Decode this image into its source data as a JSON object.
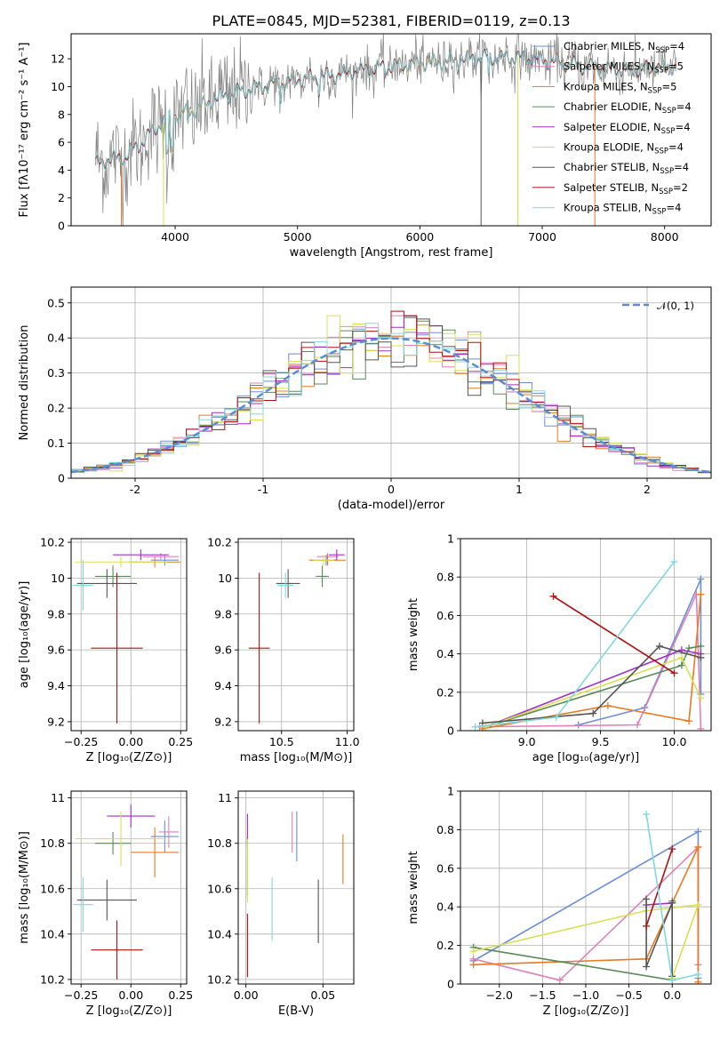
{
  "title": "PLATE=0845, MJD=52381, FIBERID=0119, z=0.13",
  "colors": {
    "chabrier_miles": "#6a8fd8",
    "salpeter_miles": "#e080b8",
    "kroupa_miles": "#e87a20",
    "chabrier_elodie": "#5a8a5a",
    "salpeter_elodie": "#a030c8",
    "kroupa_elodie": "#d8e050",
    "chabrier_stelib": "#555555",
    "salpeter_stelib": "#b01010",
    "kroupa_stelib": "#80d8e0"
  },
  "chart_data": [
    {
      "id": "spectrum",
      "type": "line",
      "xlabel": "wavelength [Angstrom, rest frame]",
      "ylabel": "Flux [fλ10⁻¹⁷ erg cm⁻² s⁻¹ A⁻¹]",
      "xlim": [
        3150,
        8380
      ],
      "ylim": [
        0,
        13.8
      ],
      "xticks": [
        4000,
        5000,
        6000,
        7000,
        8000
      ],
      "yticks": [
        0,
        2,
        4,
        6,
        8,
        10,
        12
      ],
      "x_range": [
        3350,
        8100
      ],
      "continuum": [
        [
          3350,
          4.5
        ],
        [
          3600,
          5.0
        ],
        [
          3750,
          6.2
        ],
        [
          3900,
          7.5
        ],
        [
          4000,
          8.0
        ],
        [
          4150,
          8.3
        ],
        [
          4300,
          9.0
        ],
        [
          4500,
          9.6
        ],
        [
          4700,
          10.0
        ],
        [
          5000,
          10.5
        ],
        [
          5300,
          10.8
        ],
        [
          5600,
          11.3
        ],
        [
          5900,
          11.6
        ],
        [
          6200,
          11.8
        ],
        [
          6500,
          12.1
        ],
        [
          6800,
          12.1
        ],
        [
          7100,
          11.8
        ],
        [
          7400,
          11.4
        ],
        [
          7700,
          11.2
        ],
        [
          8000,
          11.4
        ],
        [
          8100,
          11.5
        ]
      ],
      "legend": [
        {
          "label": "Chabrier MILES, N",
          "sub": "SSP",
          "suffix": "=4",
          "color_key": "chabrier_miles"
        },
        {
          "label": "Salpeter MILES, N",
          "sub": "SSP",
          "suffix": "=5",
          "color_key": "salpeter_miles"
        },
        {
          "label": "Kroupa MILES, N",
          "sub": "SSP",
          "suffix": "=5",
          "color_key": "kroupa_miles"
        },
        {
          "label": "Chabrier ELODIE, N",
          "sub": "SSP",
          "suffix": "=4",
          "color_key": "chabrier_elodie"
        },
        {
          "label": "Salpeter ELODIE, N",
          "sub": "SSP",
          "suffix": "=4",
          "color_key": "salpeter_elodie"
        },
        {
          "label": "Kroupa ELODIE, N",
          "sub": "SSP",
          "suffix": "=4",
          "color_key": "kroupa_elodie"
        },
        {
          "label": "Chabrier STELIB, N",
          "sub": "SSP",
          "suffix": "=4",
          "color_key": "chabrier_stelib"
        },
        {
          "label": "Salpeter STELIB, N",
          "sub": "SSP",
          "suffix": "=2",
          "color_key": "salpeter_stelib"
        },
        {
          "label": "Kroupa STELIB, N",
          "sub": "SSP",
          "suffix": "=4",
          "color_key": "kroupa_stelib"
        }
      ]
    },
    {
      "id": "residuals",
      "type": "bar",
      "xlabel": "(data-model)/error",
      "ylabel": "Normed distribution",
      "xlim": [
        -2.5,
        2.5
      ],
      "ylim": [
        0,
        0.545
      ],
      "xticks": [
        -2,
        -1,
        0,
        1,
        2
      ],
      "yticks": [
        0.0,
        0.1,
        0.2,
        0.3,
        0.4,
        0.5
      ],
      "bin_width": 0.1,
      "legend": "𝒩(0, 1)",
      "gaussian_mean": 0,
      "gaussian_sigma": 1
    },
    {
      "id": "z_age",
      "type": "scatter",
      "xlabel": "Z [log₁₀(Z/Z⊙)]",
      "ylabel": "age  [log₁₀(age/yr)]",
      "xlim": [
        -0.3,
        0.28
      ],
      "ylim": [
        9.15,
        10.22
      ],
      "xticks": [
        -0.25,
        0.0,
        0.25
      ],
      "xticklabels": [
        "−0.25",
        "0.00",
        "0.25"
      ],
      "yticks": [
        9.2,
        9.4,
        9.6,
        9.8,
        10.0,
        10.2
      ],
      "points": [
        {
          "k": "chabrier_miles",
          "x": 0.17,
          "xe": 0.07,
          "y": 10.1,
          "ye": 0.03
        },
        {
          "k": "salpeter_miles",
          "x": 0.15,
          "xe": 0.09,
          "y": 10.12,
          "ye": 0.02
        },
        {
          "k": "kroupa_miles",
          "x": 0.12,
          "xe": 0.13,
          "y": 10.09,
          "ye": 0.03
        },
        {
          "k": "chabrier_elodie",
          "x": -0.09,
          "xe": 0.09,
          "y": 10.01,
          "ye": 0.06
        },
        {
          "k": "salpeter_elodie",
          "x": 0.05,
          "xe": 0.14,
          "y": 10.13,
          "ye": 0.03
        },
        {
          "k": "kroupa_elodie",
          "x": -0.05,
          "xe": 0.23,
          "y": 10.09,
          "ye": 0.03
        },
        {
          "k": "chabrier_stelib",
          "x": -0.12,
          "xe": 0.15,
          "y": 9.97,
          "ye": 0.08
        },
        {
          "k": "salpeter_stelib",
          "x": -0.07,
          "xe": 0.13,
          "y": 9.61,
          "ye": 0.42
        },
        {
          "k": "kroupa_stelib",
          "x": -0.24,
          "xe": 0.05,
          "y": 9.96,
          "ye": 0.14
        }
      ]
    },
    {
      "id": "mass_age",
      "type": "scatter",
      "xlabel": "mass [log₁₀(M/M⊙)]",
      "ylabel": "",
      "xlim": [
        10.17,
        11.05
      ],
      "ylim": [
        9.15,
        10.22
      ],
      "xticks": [
        10.5,
        11.0
      ],
      "xticklabels": [
        "10.5",
        "11.0"
      ],
      "yticks": [
        9.2,
        9.4,
        9.6,
        9.8,
        10.0,
        10.2
      ],
      "points": [
        {
          "k": "chabrier_miles",
          "x": 10.84,
          "xe": 0.08,
          "y": 10.1,
          "ye": 0.03
        },
        {
          "k": "salpeter_miles",
          "x": 10.85,
          "xe": 0.08,
          "y": 10.12,
          "ye": 0.02
        },
        {
          "k": "kroupa_miles",
          "x": 10.85,
          "xe": 0.14,
          "y": 10.1,
          "ye": 0.03
        },
        {
          "k": "chabrier_elodie",
          "x": 10.81,
          "xe": 0.05,
          "y": 10.01,
          "ye": 0.06
        },
        {
          "k": "salpeter_elodie",
          "x": 10.92,
          "xe": 0.06,
          "y": 10.13,
          "ye": 0.03
        },
        {
          "k": "kroupa_elodie",
          "x": 10.82,
          "xe": 0.08,
          "y": 10.1,
          "ye": 0.03
        },
        {
          "k": "chabrier_stelib",
          "x": 10.55,
          "xe": 0.09,
          "y": 9.97,
          "ye": 0.08
        },
        {
          "k": "salpeter_stelib",
          "x": 10.33,
          "xe": 0.08,
          "y": 9.61,
          "ye": 0.42
        },
        {
          "k": "kroupa_stelib",
          "x": 10.53,
          "xe": 0.06,
          "y": 9.96,
          "ye": 0.07
        }
      ]
    },
    {
      "id": "age_weight",
      "type": "line",
      "xlabel": "age  [log₁₀(age/yr)]",
      "ylabel": "mass weight",
      "xlim": [
        8.55,
        10.25
      ],
      "ylim": [
        0,
        1.0
      ],
      "xticks": [
        9.0,
        9.5,
        10.0
      ],
      "xticklabels": [
        "9.0",
        "9.5",
        "10.0"
      ],
      "yticks": [
        0.0,
        0.2,
        0.4,
        0.6,
        0.8,
        1.0
      ],
      "series": [
        {
          "k": "chabrier_miles",
          "points": [
            [
              9.35,
              0.03
            ],
            [
              9.8,
              0.12
            ],
            [
              10.18,
              0.79
            ],
            [
              10.18,
              0.19
            ]
          ]
        },
        {
          "k": "salpeter_miles",
          "points": [
            [
              8.68,
              0.02
            ],
            [
              9.75,
              0.03
            ],
            [
              10.15,
              0.71
            ],
            [
              10.18,
              0.01
            ]
          ]
        },
        {
          "k": "kroupa_miles",
          "points": [
            [
              8.7,
              0.01
            ],
            [
              9.55,
              0.13
            ],
            [
              10.1,
              0.05
            ],
            [
              10.18,
              0.71
            ]
          ]
        },
        {
          "k": "chabrier_elodie",
          "points": [
            [
              8.72,
              0.02
            ],
            [
              10.05,
              0.34
            ],
            [
              10.1,
              0.43
            ],
            [
              10.18,
              0.44
            ]
          ]
        },
        {
          "k": "salpeter_elodie",
          "points": [
            [
              8.72,
              0.02
            ],
            [
              10.05,
              0.42
            ],
            [
              10.18,
              0.4
            ]
          ]
        },
        {
          "k": "kroupa_elodie",
          "points": [
            [
              8.72,
              0.02
            ],
            [
              10.05,
              0.38
            ],
            [
              10.18,
              0.17
            ]
          ]
        },
        {
          "k": "chabrier_stelib",
          "points": [
            [
              8.7,
              0.04
            ],
            [
              9.45,
              0.09
            ],
            [
              9.9,
              0.44
            ],
            [
              10.18,
              0.38
            ]
          ]
        },
        {
          "k": "salpeter_stelib",
          "points": [
            [
              9.18,
              0.7
            ],
            [
              10.0,
              0.3
            ]
          ]
        },
        {
          "k": "kroupa_stelib",
          "points": [
            [
              8.65,
              0.02
            ],
            [
              9.2,
              0.07
            ],
            [
              10.0,
              0.88
            ]
          ]
        }
      ]
    },
    {
      "id": "z_mass",
      "type": "scatter",
      "xlabel": "Z [log₁₀(Z/Z⊙)]",
      "ylabel": "mass [log₁₀(M/M⊙)]",
      "xlim": [
        -0.3,
        0.28
      ],
      "ylim": [
        10.18,
        11.03
      ],
      "xticks": [
        -0.25,
        0.0,
        0.25
      ],
      "xticklabels": [
        "−0.25",
        "0.00",
        "0.25"
      ],
      "yticks": [
        10.2,
        10.4,
        10.6,
        10.8,
        11.0
      ],
      "points": [
        {
          "k": "chabrier_miles",
          "x": 0.17,
          "xe": 0.07,
          "y": 10.83,
          "ye": 0.07
        },
        {
          "k": "salpeter_miles",
          "x": 0.19,
          "xe": 0.05,
          "y": 10.85,
          "ye": 0.07
        },
        {
          "k": "kroupa_miles",
          "x": 0.12,
          "xe": 0.12,
          "y": 10.76,
          "ye": 0.11
        },
        {
          "k": "chabrier_elodie",
          "x": -0.09,
          "xe": 0.09,
          "y": 10.8,
          "ye": 0.05
        },
        {
          "k": "salpeter_elodie",
          "x": 0.0,
          "xe": 0.12,
          "y": 10.92,
          "ye": 0.05
        },
        {
          "k": "kroupa_elodie",
          "x": -0.05,
          "xe": 0.23,
          "y": 10.82,
          "ye": 0.12
        },
        {
          "k": "chabrier_stelib",
          "x": -0.12,
          "xe": 0.15,
          "y": 10.55,
          "ye": 0.09
        },
        {
          "k": "salpeter_stelib",
          "x": -0.07,
          "xe": 0.13,
          "y": 10.33,
          "ye": 0.13
        },
        {
          "k": "kroupa_stelib",
          "x": -0.24,
          "xe": 0.05,
          "y": 10.53,
          "ye": 0.12
        }
      ]
    },
    {
      "id": "ebv_mass",
      "type": "scatter",
      "xlabel": "E(B-V)",
      "ylabel": "",
      "xlim": [
        -0.005,
        0.07
      ],
      "ylim": [
        10.18,
        11.03
      ],
      "xticks": [
        0.0,
        0.05
      ],
      "xticklabels": [
        "0.00",
        "0.05"
      ],
      "yticks": [
        10.2,
        10.4,
        10.6,
        10.8,
        11.0
      ],
      "points": [
        {
          "k": "chabrier_miles",
          "x": 0.033,
          "xe": 0.0,
          "y": 10.83,
          "ye": 0.11
        },
        {
          "k": "salpeter_miles",
          "x": 0.03,
          "xe": 0.0,
          "y": 10.85,
          "ye": 0.09
        },
        {
          "k": "kroupa_miles",
          "x": 0.063,
          "xe": 0.0,
          "y": 10.73,
          "ye": 0.11
        },
        {
          "k": "chabrier_elodie",
          "x": 0.001,
          "xe": 0.0,
          "y": 10.7,
          "ye": 0.13
        },
        {
          "k": "salpeter_elodie",
          "x": 0.001,
          "xe": 0.0,
          "y": 10.86,
          "ye": 0.07
        },
        {
          "k": "kroupa_elodie",
          "x": 0.001,
          "xe": 0.0,
          "y": 10.68,
          "ye": 0.14
        },
        {
          "k": "chabrier_stelib",
          "x": 0.047,
          "xe": 0.0,
          "y": 10.5,
          "ye": 0.14
        },
        {
          "k": "salpeter_stelib",
          "x": 0.001,
          "xe": 0.0,
          "y": 10.35,
          "ye": 0.14
        },
        {
          "k": "kroupa_stelib",
          "x": 0.017,
          "xe": 0.0,
          "y": 10.51,
          "ye": 0.14
        }
      ]
    },
    {
      "id": "z_weight",
      "type": "line",
      "xlabel": "Z [log₁₀(Z/Z⊙)]",
      "ylabel": "mass weight",
      "xlim": [
        -2.45,
        0.45
      ],
      "ylim": [
        0,
        1.0
      ],
      "xticks": [
        -2.0,
        -1.5,
        -1.0,
        -0.5,
        0.0
      ],
      "xticklabels": [
        "−2.0",
        "−1.5",
        "−1.0",
        "−0.5",
        "0.0"
      ],
      "yticks": [
        0.0,
        0.2,
        0.4,
        0.6,
        0.8,
        1.0
      ],
      "series": [
        {
          "k": "chabrier_miles",
          "points": [
            [
              -2.3,
              0.12
            ],
            [
              0.3,
              0.79
            ],
            [
              0.3,
              0.03
            ]
          ]
        },
        {
          "k": "salpeter_miles",
          "points": [
            [
              -2.3,
              0.13
            ],
            [
              -1.3,
              0.02
            ],
            [
              0.3,
              0.71
            ],
            [
              0.3,
              0.1
            ]
          ]
        },
        {
          "k": "kroupa_miles",
          "points": [
            [
              -2.3,
              0.1
            ],
            [
              -0.3,
              0.13
            ],
            [
              0.3,
              0.71
            ],
            [
              0.3,
              0.01
            ]
          ]
        },
        {
          "k": "chabrier_elodie",
          "points": [
            [
              -2.3,
              0.19
            ],
            [
              0.0,
              0.02
            ],
            [
              0.0,
              0.43
            ]
          ]
        },
        {
          "k": "salpeter_elodie",
          "points": [
            [
              -0.3,
              0.41
            ],
            [
              0.0,
              0.42
            ]
          ]
        },
        {
          "k": "kroupa_elodie",
          "points": [
            [
              -2.3,
              0.17
            ],
            [
              -0.3,
              0.38
            ],
            [
              0.3,
              0.41
            ],
            [
              0.0,
              0.03
            ]
          ]
        },
        {
          "k": "chabrier_stelib",
          "points": [
            [
              -0.3,
              0.44
            ],
            [
              -0.3,
              0.09
            ],
            [
              0.0,
              0.42
            ],
            [
              0.0,
              0.04
            ]
          ]
        },
        {
          "k": "salpeter_stelib",
          "points": [
            [
              -0.3,
              0.3
            ],
            [
              0.0,
              0.7
            ]
          ]
        },
        {
          "k": "kroupa_stelib",
          "points": [
            [
              -0.3,
              0.88
            ],
            [
              0.0,
              0.02
            ],
            [
              0.3,
              0.05
            ]
          ]
        }
      ]
    }
  ]
}
